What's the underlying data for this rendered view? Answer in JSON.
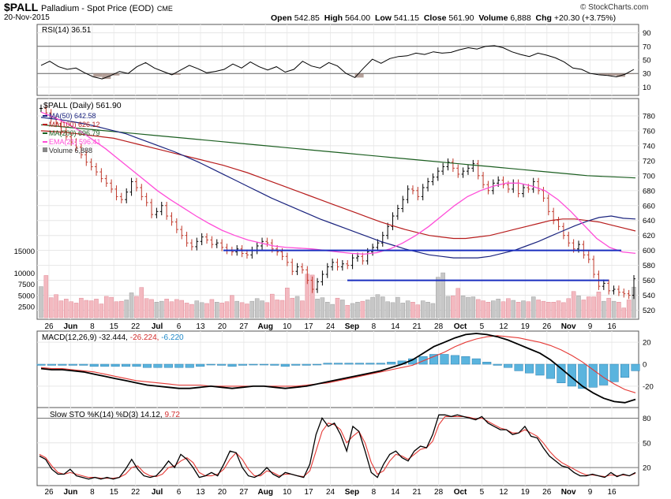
{
  "header": {
    "symbol": "$PALL",
    "name": "Palladium - Spot Price (EOD)",
    "exchange": "CME",
    "date": "20-Nov-2015",
    "copyright": "© StockCharts.com",
    "quote": {
      "open_label": "Open",
      "open": "542.85",
      "high_label": "High",
      "high": "564.00",
      "low_label": "Low",
      "low": "541.15",
      "close_label": "Close",
      "close": "561.90",
      "volume_label": "Volume",
      "volume": "6,888",
      "chg_label": "Chg",
      "chg": "+20.30 (+3.75%)"
    }
  },
  "chart_data": [
    {
      "panel": "rsi",
      "type": "line",
      "label": "RSI(14) 36.51",
      "ylim": [
        0,
        100
      ],
      "ticks": [
        90,
        70,
        50,
        30,
        10
      ],
      "reference_lines": [
        70,
        30
      ],
      "values": [
        42,
        48,
        40,
        36,
        38,
        31,
        25,
        22,
        27,
        33,
        30,
        40,
        46,
        38,
        33,
        28,
        35,
        42,
        37,
        31,
        33,
        36,
        44,
        38,
        47,
        40,
        35,
        40,
        32,
        36,
        48,
        41,
        38,
        46,
        41,
        30,
        24,
        38,
        51,
        45,
        52,
        55,
        56,
        60,
        58,
        62,
        60,
        61,
        65,
        68,
        66,
        70,
        71,
        68,
        62,
        58,
        55,
        60,
        57,
        53,
        47,
        38,
        36,
        30,
        28,
        27,
        25,
        29,
        36
      ]
    },
    {
      "panel": "price",
      "type": "line",
      "title": "$PALL (Daily) 561.90",
      "ylim": [
        510,
        800
      ],
      "ticks": [
        780,
        760,
        740,
        720,
        700,
        680,
        660,
        640,
        620,
        600,
        580,
        560,
        540,
        520
      ],
      "legend": [
        {
          "label": "MA(50) 642.58",
          "color": "#1a237e"
        },
        {
          "label": "MA(100) 626.12",
          "color": "#b71c1c"
        },
        {
          "label": "MA(200) 696.79",
          "color": "#1b5e20"
        },
        {
          "label": "EMA(21) 596.41",
          "color": "#ff4dd8"
        },
        {
          "label": "Volume 6,888",
          "color": "#888888"
        }
      ],
      "x_tick_labels": [
        "26",
        "Jun",
        "8",
        "15",
        "22",
        "Jul",
        "6",
        "13",
        "20",
        "27",
        "Aug",
        "10",
        "17",
        "24",
        "Sep",
        "8",
        "14",
        "21",
        "28",
        "Oct",
        "5",
        "12",
        "19",
        "26",
        "Nov",
        "9",
        "16"
      ],
      "close": [
        790,
        784,
        776,
        770,
        760,
        752,
        745,
        738,
        728,
        718,
        712,
        705,
        696,
        690,
        682,
        672,
        668,
        678,
        692,
        684,
        672,
        664,
        648,
        652,
        660,
        646,
        638,
        628,
        620,
        610,
        605,
        612,
        618,
        614,
        608,
        610,
        604,
        600,
        598,
        602,
        596,
        594,
        600,
        606,
        612,
        610,
        602,
        598,
        592,
        584,
        572,
        578,
        574,
        560,
        548,
        558,
        568,
        578,
        584,
        578,
        582,
        580,
        590,
        592,
        586,
        598,
        604,
        610,
        620,
        632,
        646,
        656,
        668,
        682,
        680,
        672,
        684,
        692,
        698,
        706,
        712,
        718,
        710,
        702,
        706,
        710,
        716,
        700,
        688,
        680,
        690,
        694,
        688,
        682,
        690,
        676,
        684,
        682,
        692,
        680,
        670,
        652,
        640,
        632,
        620,
        610,
        602,
        608,
        594,
        588,
        568,
        552,
        556,
        546,
        548,
        544,
        542,
        540,
        562
      ],
      "ma50": [
        778,
        776,
        774,
        771,
        768,
        764,
        760,
        756,
        750,
        744,
        738,
        732,
        725,
        718,
        710,
        702,
        694,
        686,
        678,
        670,
        663,
        656,
        649,
        642,
        636,
        630,
        624,
        618,
        612,
        607,
        602,
        598,
        594,
        592,
        590,
        590,
        590,
        592,
        596,
        600,
        606,
        612,
        619,
        626,
        633,
        639,
        644,
        646,
        643,
        642
      ],
      "ma100": [
        760,
        759,
        758,
        756,
        754,
        752,
        750,
        746,
        742,
        738,
        734,
        730,
        726,
        722,
        718,
        714,
        709,
        704,
        698,
        692,
        686,
        680,
        674,
        668,
        662,
        656,
        650,
        644,
        638,
        633,
        628,
        624,
        620,
        618,
        616,
        616,
        618,
        620,
        624,
        628,
        632,
        636,
        640,
        642,
        642,
        640,
        638,
        634,
        630,
        626
      ],
      "ma200": [
        768,
        766,
        764,
        762,
        760,
        758,
        756,
        754,
        752,
        750,
        748,
        746,
        744,
        742,
        740,
        738,
        736,
        734,
        732,
        730,
        728,
        726,
        724,
        722,
        720,
        718,
        716,
        714,
        712,
        710,
        708,
        706,
        704,
        702,
        700,
        699,
        698,
        697
      ],
      "ema21": [
        785,
        778,
        770,
        760,
        748,
        736,
        722,
        708,
        694,
        680,
        668,
        657,
        646,
        636,
        627,
        620,
        614,
        610,
        606,
        604,
        603,
        602,
        600,
        598,
        596,
        595,
        597,
        602,
        610,
        620,
        632,
        646,
        660,
        672,
        680,
        686,
        690,
        690,
        686,
        680,
        668,
        652,
        634,
        616,
        604,
        598,
        596
      ],
      "horizontal_lines": [
        600,
        560
      ]
    },
    {
      "panel": "volume",
      "type": "bar",
      "ticks": [
        15000,
        10000,
        7500,
        5000,
        2500
      ],
      "values": [
        7000,
        9500,
        4500,
        5200,
        3800,
        4200,
        3600,
        3300,
        4400,
        3900,
        3800,
        4200,
        3100,
        4800,
        4600,
        3600,
        3700,
        4000,
        5600,
        4800,
        6800,
        4300,
        4100,
        3500,
        3700,
        4200,
        3600,
        4100,
        3900,
        3300,
        3000,
        3800,
        3400,
        3200,
        4100,
        3500,
        3300,
        3600,
        5000,
        3700,
        3400,
        3100,
        3700,
        4300,
        3800,
        3400,
        5300,
        4000,
        3900,
        6700,
        4400,
        4800,
        3800,
        9800,
        9600,
        4200,
        4500,
        3500,
        3000,
        4400,
        4000,
        2800,
        3200,
        3500,
        3700,
        4000,
        4600,
        5200,
        4700,
        3600,
        3400,
        4600,
        3300,
        3800,
        3500,
        2900,
        3800,
        3500,
        3200,
        9100,
        10100,
        4800,
        4900,
        6600,
        4900,
        4600,
        4700,
        4100,
        3800,
        3500,
        3800,
        4200,
        3600,
        4300,
        3900,
        3500,
        3800,
        3600,
        4700,
        4000,
        3700,
        3500,
        3500,
        3800,
        3400,
        4300,
        5900,
        4900,
        4000,
        4700,
        4700,
        5800,
        3700,
        4400,
        3700,
        3500,
        2200,
        4000,
        6888
      ]
    },
    {
      "panel": "macd",
      "type": "line",
      "label": "MACD(12,26,9) -32.444, -26.224, -6.220",
      "label_parts": [
        "MACD(12,26,9)",
        "-32.444,",
        "-26.224,",
        "-6.220"
      ],
      "ylim": [
        -38,
        28
      ],
      "ticks": [
        20,
        0,
        -20
      ],
      "macd": [
        -4,
        -5,
        -5,
        -6,
        -7,
        -9,
        -11,
        -13,
        -15,
        -17,
        -19,
        -20,
        -21,
        -22,
        -22,
        -21,
        -20,
        -21,
        -22,
        -21,
        -20,
        -20,
        -21,
        -22,
        -21,
        -20,
        -18,
        -16,
        -14,
        -12,
        -10,
        -8,
        -6,
        -3,
        0,
        4,
        10,
        16,
        20,
        24,
        27,
        28,
        27,
        25,
        22,
        18,
        14,
        10,
        4,
        -4,
        -12,
        -20,
        -26,
        -31,
        -34,
        -35,
        -32
      ],
      "signal": [
        -3,
        -4,
        -4,
        -5,
        -6,
        -7,
        -9,
        -11,
        -13,
        -15,
        -16,
        -17,
        -18,
        -19,
        -19,
        -19,
        -20,
        -20,
        -20,
        -20,
        -20,
        -20,
        -20,
        -20,
        -20,
        -19,
        -18,
        -17,
        -15,
        -13,
        -11,
        -9,
        -7,
        -5,
        -3,
        -1,
        3,
        7,
        11,
        16,
        20,
        23,
        25,
        26,
        25,
        24,
        22,
        20,
        17,
        13,
        8,
        2,
        -5,
        -12,
        -18,
        -23,
        -26
      ]
    },
    {
      "panel": "stochastic",
      "type": "line",
      "label": "Slow STO %K(14) %D(3) 14.12, 9.72",
      "label_parts": [
        "Slow STO %K(14) %D(3)",
        "14.12,",
        "9.72"
      ],
      "ylim": [
        0,
        90
      ],
      "ticks": [
        80,
        50,
        20
      ],
      "reference_lines": [
        80,
        20
      ],
      "k": [
        34,
        30,
        18,
        12,
        12,
        18,
        10,
        8,
        6,
        8,
        6,
        8,
        6,
        8,
        18,
        30,
        18,
        10,
        8,
        10,
        18,
        28,
        20,
        36,
        30,
        20,
        8,
        10,
        14,
        10,
        24,
        40,
        38,
        20,
        10,
        8,
        12,
        20,
        12,
        8,
        14,
        12,
        10,
        8,
        24,
        60,
        80,
        70,
        74,
        60,
        40,
        70,
        64,
        40,
        14,
        8,
        24,
        36,
        40,
        32,
        28,
        40,
        46,
        44,
        60,
        84,
        84,
        82,
        84,
        82,
        80,
        78,
        82,
        74,
        70,
        66,
        66,
        60,
        62,
        70,
        58,
        56,
        44,
        34,
        28,
        22,
        20,
        14,
        10,
        10,
        12,
        10,
        8,
        14,
        9,
        12,
        10,
        14
      ],
      "d": [
        36,
        32,
        22,
        14,
        12,
        14,
        12,
        10,
        8,
        8,
        7,
        7,
        7,
        8,
        12,
        20,
        22,
        14,
        10,
        9,
        12,
        20,
        22,
        28,
        32,
        26,
        14,
        10,
        10,
        12,
        18,
        30,
        38,
        30,
        18,
        10,
        10,
        16,
        14,
        10,
        12,
        12,
        10,
        9,
        16,
        40,
        64,
        74,
        72,
        66,
        50,
        58,
        64,
        50,
        26,
        12,
        16,
        28,
        36,
        34,
        30,
        36,
        42,
        44,
        52,
        72,
        82,
        82,
        82,
        82,
        81,
        79,
        80,
        76,
        72,
        68,
        66,
        62,
        62,
        66,
        62,
        58,
        50,
        40,
        32,
        26,
        22,
        18,
        14,
        11,
        11,
        10,
        9,
        11,
        10,
        11,
        10,
        13
      ]
    }
  ]
}
